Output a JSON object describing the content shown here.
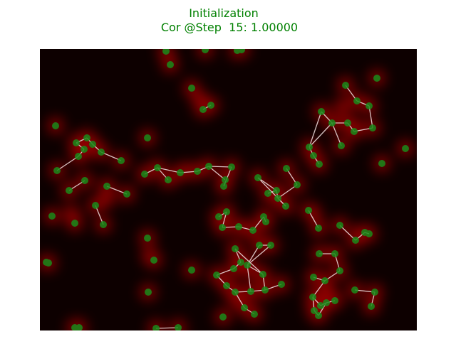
{
  "title": "Initialization",
  "subtitle": "Cor @Step  15: 1.00000"
}
